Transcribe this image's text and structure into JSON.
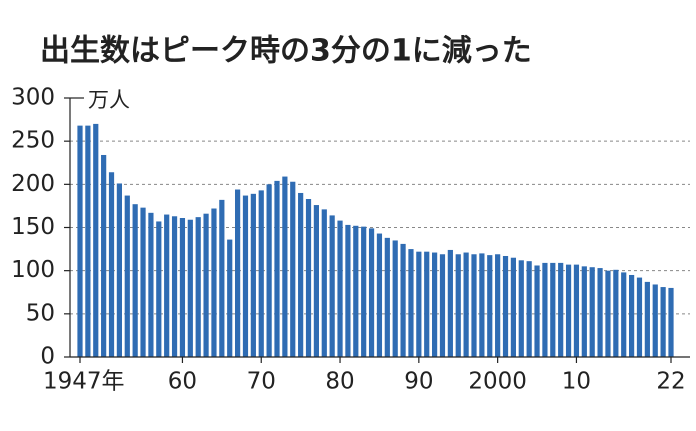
{
  "chart_data": {
    "type": "bar",
    "title": "出生数はピーク時の3分の1に減った",
    "ylabel": "万人",
    "categories": [
      "1947年",
      null,
      null,
      null,
      null,
      null,
      null,
      null,
      null,
      null,
      null,
      null,
      null,
      "60",
      null,
      null,
      null,
      null,
      null,
      null,
      null,
      null,
      null,
      "70",
      null,
      null,
      null,
      null,
      null,
      null,
      null,
      null,
      null,
      "80",
      null,
      null,
      null,
      null,
      null,
      null,
      null,
      null,
      null,
      "90",
      null,
      null,
      null,
      null,
      null,
      null,
      null,
      null,
      null,
      "2000",
      null,
      null,
      null,
      null,
      null,
      null,
      null,
      null,
      null,
      "10",
      null,
      null,
      null,
      null,
      null,
      null,
      null,
      null,
      null,
      null,
      null,
      "22"
    ],
    "values": [
      268,
      268,
      270,
      234,
      214,
      201,
      187,
      177,
      173,
      167,
      157,
      165,
      163,
      161,
      159,
      162,
      166,
      172,
      182,
      136,
      194,
      187,
      189,
      193,
      200,
      204,
      209,
      203,
      190,
      183,
      176,
      171,
      164,
      158,
      153,
      152,
      151,
      149,
      143,
      138,
      135,
      131,
      125,
      122,
      122,
      121,
      119,
      124,
      119,
      121,
      119,
      120,
      118,
      119,
      117,
      115,
      112,
      111,
      106,
      109,
      109,
      109,
      107,
      107,
      105,
      104,
      103,
      100,
      101,
      98,
      95,
      92,
      87,
      84,
      81,
      80
    ],
    "color": "#2f6cb3",
    "ylim": [
      0,
      300
    ],
    "yticks": [
      0,
      50,
      100,
      150,
      200,
      250,
      300
    ],
    "grid": true
  }
}
